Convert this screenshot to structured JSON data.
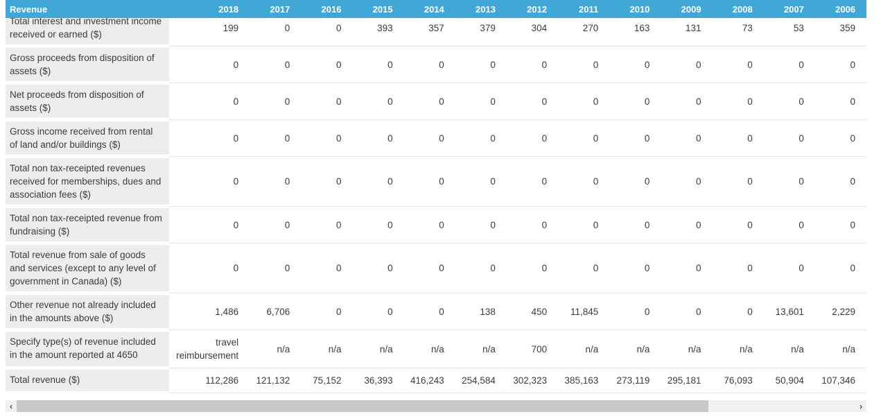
{
  "header": {
    "label": "Revenue",
    "years": [
      "2018",
      "2017",
      "2016",
      "2015",
      "2014",
      "2013",
      "2012",
      "2011",
      "2010",
      "2009",
      "2008",
      "2007",
      "2006"
    ]
  },
  "rows": [
    {
      "label": "Total interest and investment income received or earned ($)",
      "values": [
        "199",
        "0",
        "0",
        "393",
        "357",
        "379",
        "304",
        "270",
        "163",
        "131",
        "73",
        "53",
        "359"
      ]
    },
    {
      "label": "Gross proceeds from disposition of assets ($)",
      "values": [
        "0",
        "0",
        "0",
        "0",
        "0",
        "0",
        "0",
        "0",
        "0",
        "0",
        "0",
        "0",
        "0"
      ]
    },
    {
      "label": "Net proceeds from disposition of assets ($)",
      "values": [
        "0",
        "0",
        "0",
        "0",
        "0",
        "0",
        "0",
        "0",
        "0",
        "0",
        "0",
        "0",
        "0"
      ]
    },
    {
      "label": "Gross income received from rental of land and/or buildings ($)",
      "values": [
        "0",
        "0",
        "0",
        "0",
        "0",
        "0",
        "0",
        "0",
        "0",
        "0",
        "0",
        "0",
        "0"
      ]
    },
    {
      "label": "Total non tax-receipted revenues received for memberships, dues and association fees ($)",
      "values": [
        "0",
        "0",
        "0",
        "0",
        "0",
        "0",
        "0",
        "0",
        "0",
        "0",
        "0",
        "0",
        "0"
      ]
    },
    {
      "label": "Total non tax-receipted revenue from fundraising ($)",
      "values": [
        "0",
        "0",
        "0",
        "0",
        "0",
        "0",
        "0",
        "0",
        "0",
        "0",
        "0",
        "0",
        "0"
      ]
    },
    {
      "label": "Total revenue from sale of goods and services (except to any level of government in Canada) ($)",
      "values": [
        "0",
        "0",
        "0",
        "0",
        "0",
        "0",
        "0",
        "0",
        "0",
        "0",
        "0",
        "0",
        "0"
      ]
    },
    {
      "label": "Other revenue not already included in the amounts above ($)",
      "values": [
        "1,486",
        "6,706",
        "0",
        "0",
        "0",
        "138",
        "450",
        "11,845",
        "0",
        "0",
        "0",
        "13,601",
        "2,229"
      ]
    },
    {
      "label": "Specify type(s) of revenue included in the amount reported at 4650",
      "values": [
        "travel reimbursement",
        "n/a",
        "n/a",
        "n/a",
        "n/a",
        "n/a",
        "700",
        "n/a",
        "n/a",
        "n/a",
        "n/a",
        "n/a",
        "n/a"
      ]
    },
    {
      "label": "Total revenue ($)",
      "values": [
        "112,286",
        "121,132",
        "75,152",
        "36,393",
        "416,243",
        "254,584",
        "302,323",
        "385,163",
        "273,119",
        "295,181",
        "76,093",
        "50,904",
        "107,346"
      ]
    }
  ],
  "scrollbar": {
    "left_arrow": "‹",
    "right_arrow": "›"
  },
  "colors": {
    "header_bg": "#41a7d7",
    "header_text": "#ffffff",
    "label_bg": "#ededed",
    "row_border": "#e2e2e2",
    "body_text": "#3b3b3b",
    "scrollbar_track": "#f1f1f1",
    "scrollbar_thumb": "#c8c8c8",
    "scrollbar_arrow": "#555555"
  }
}
